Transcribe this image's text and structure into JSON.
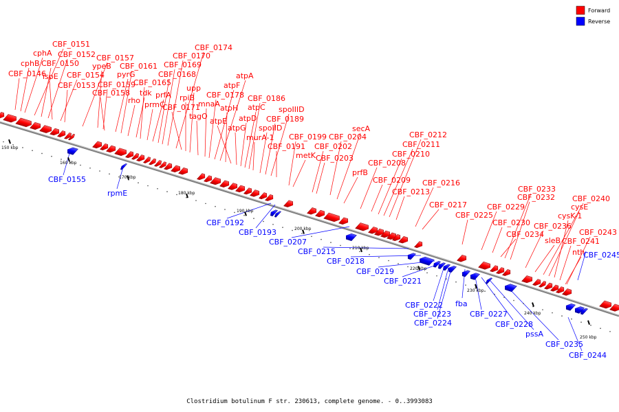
{
  "legend": [
    {
      "label": "Forward",
      "color": "#ff0000"
    },
    {
      "label": "Reverse",
      "color": "#0000ff"
    }
  ],
  "caption": "Clostridium botulinum F str. 230613, complete genome. - 0..3993083",
  "ticks": [
    "150 kbp",
    "160 kbp",
    "170 kbp",
    "180 kbp",
    "190 kbp",
    "200 kbp",
    "210 kbp",
    "220 kbp",
    "230 kbp",
    "240 kbp",
    "250 kbp"
  ],
  "forward_labels": [
    "CBF_0146",
    "cphB",
    "cphA",
    "CBF_0151",
    "CBF_0150",
    "CBF_0152",
    "ispE",
    "CBF_0154",
    "CBF_0153",
    "CBF_0157",
    "ypeB",
    "CBF_0159",
    "CBF_0158",
    "pyrG",
    "CBF_0161",
    "rho",
    "tdk",
    "CBF_0165",
    "prmC",
    "prfA",
    "CBF_0168",
    "CBF_0169",
    "CBF_0170",
    "CBF_0174",
    "CBF_0171",
    "rpiB",
    "upp",
    "tagO",
    "mnaA",
    "CBF_0178",
    "atpF",
    "atpA",
    "atpH",
    "atpE",
    "atpG",
    "atpD",
    "atpC",
    "CBF_0186",
    "murA-1",
    "spoIID",
    "CBF_0189",
    "spoIIID",
    "CBF_0191",
    "CBF_0199",
    "metK",
    "CBF_0202",
    "CBF_0203",
    "CBF_0204",
    "secA",
    "prfB",
    "CBF_0208",
    "CBF_0209",
    "CBF_0210",
    "CBF_0211",
    "CBF_0212",
    "CBF_0213",
    "CBF_0216",
    "CBF_0217",
    "CBF_0225",
    "CBF_0229",
    "CBF_0230",
    "CBF_0234",
    "CBF_0233",
    "CBF_0232",
    "CBF_0236",
    "sleB",
    "CBF_0240",
    "cysE",
    "cysK-1",
    "CBF_0241",
    "nth",
    "CBF_0243"
  ],
  "reverse_labels": [
    "CBF_0155",
    "rpmE",
    "CBF_0192",
    "CBF_0193",
    "CBF_0207",
    "CBF_0215",
    "CBF_0218",
    "CBF_0219",
    "CBF_0221",
    "CBF_0222",
    "CBF_0223",
    "CBF_0224",
    "fba",
    "CBF_0227",
    "CBF_0228",
    "pssA",
    "CBF_0235",
    "CBF_0244",
    "CBF_0245"
  ]
}
